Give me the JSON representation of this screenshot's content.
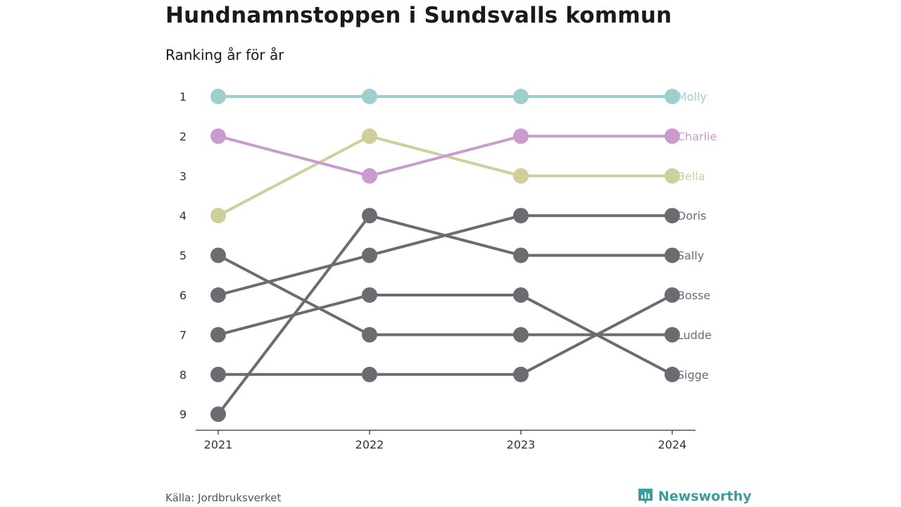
{
  "title": "Hundnamnstoppen i Sundsvalls kommun",
  "subtitle": "Ranking år för år",
  "source": "Källa: Jordbruksverket",
  "brand": {
    "name": "Newsworthy",
    "color": "#3b9c9c",
    "icon": "newsworthy-logo-icon"
  },
  "chart_data": {
    "type": "line",
    "x": [
      "2021",
      "2022",
      "2023",
      "2024"
    ],
    "y_ticks": [
      1,
      2,
      3,
      4,
      5,
      6,
      7,
      8,
      9
    ],
    "y_reversed": true,
    "ylim": [
      1,
      9
    ],
    "grid": false,
    "legend": "end-labels-right",
    "series": [
      {
        "name": "Molly",
        "values": [
          1,
          1,
          1,
          1
        ],
        "color": "#9ecfcf"
      },
      {
        "name": "Charlie",
        "values": [
          2,
          3,
          2,
          2
        ],
        "color": "#cb9bd0"
      },
      {
        "name": "Bella",
        "values": [
          4,
          2,
          3,
          3
        ],
        "color": "#cfcf9c"
      },
      {
        "name": "Doris",
        "values": [
          6,
          5,
          4,
          4
        ],
        "color": "#6b6b72"
      },
      {
        "name": "Sally",
        "values": [
          9,
          4,
          5,
          5
        ],
        "color": "#6b6b72"
      },
      {
        "name": "Bosse",
        "values": [
          8,
          8,
          8,
          6
        ],
        "color": "#6b6b72"
      },
      {
        "name": "Ludde",
        "values": [
          5,
          7,
          7,
          7
        ],
        "color": "#6b6b72"
      },
      {
        "name": "Sigge",
        "values": [
          7,
          6,
          6,
          8
        ],
        "color": "#6b6b72"
      }
    ]
  }
}
